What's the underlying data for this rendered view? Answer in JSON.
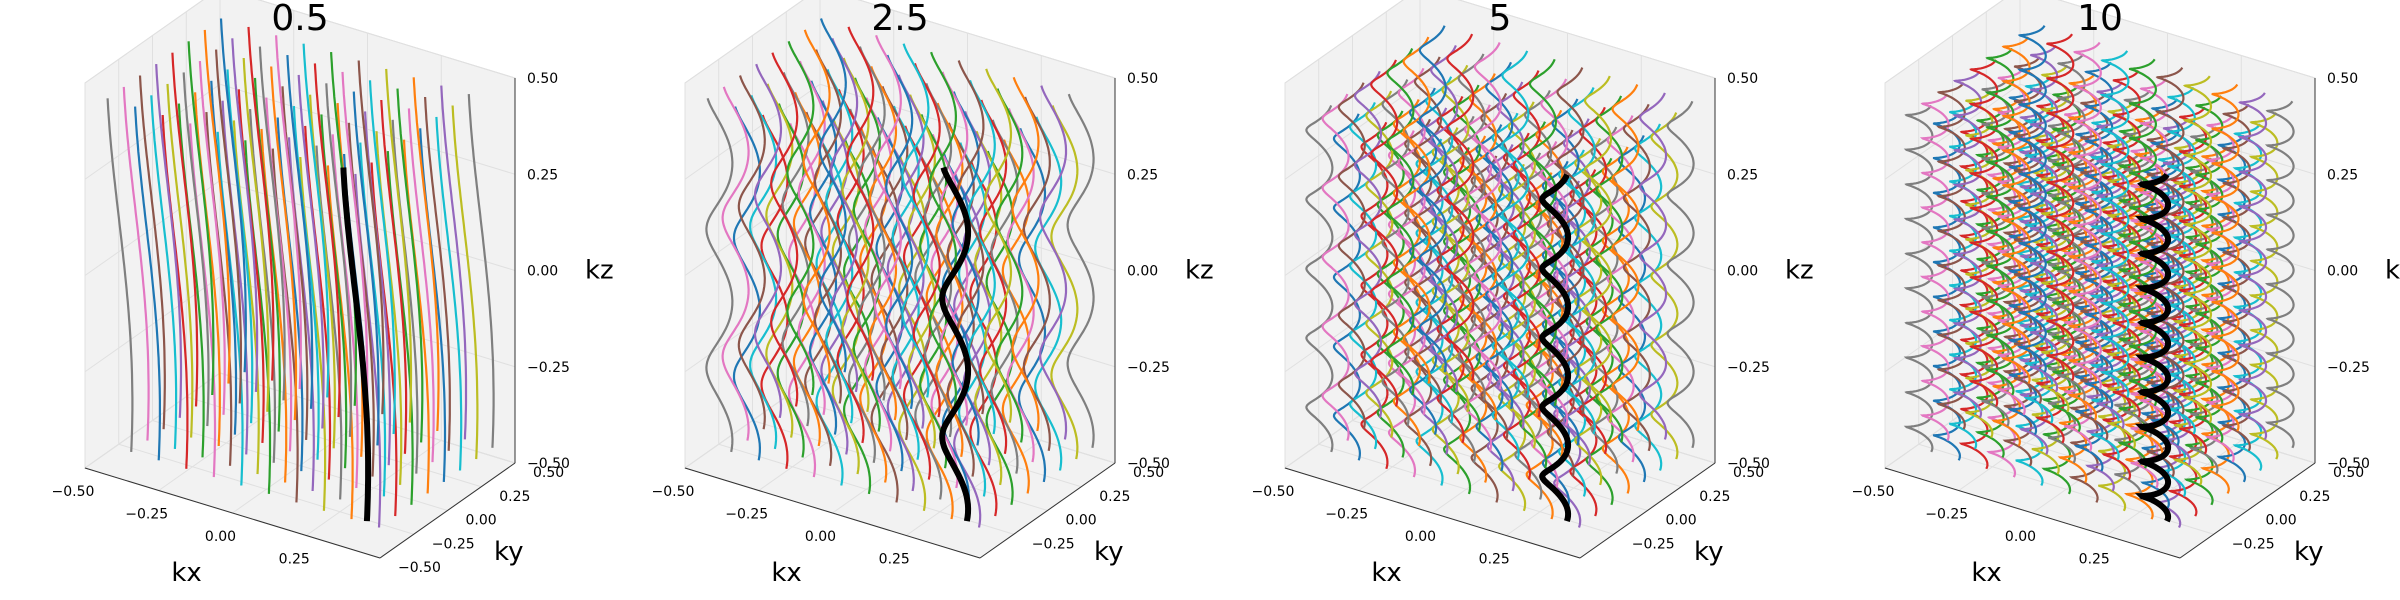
{
  "figure": {
    "panel_count": 4
  },
  "chart_data": [
    {
      "type": "line3d",
      "title": "0.5",
      "turns": 0.5,
      "xlabel": "kx",
      "ylabel": "ky",
      "zlabel": "kz",
      "xlim": [
        -0.5,
        0.5
      ],
      "ylim": [
        -0.5,
        0.5
      ],
      "zlim": [
        -0.5,
        0.5
      ],
      "xticks": [
        "−0.50",
        "−0.25",
        "0.00",
        "0.25"
      ],
      "yticks": [
        "−0.50",
        "−0.25",
        "0.00",
        "0.25",
        "0.50"
      ],
      "zticks": [
        "−0.50",
        "−0.25",
        "0.00",
        "0.25",
        "0.50"
      ],
      "grid": true,
      "helix_amplitude": 0.04,
      "highlight": {
        "x": 0.37,
        "y": -0.4,
        "color": "#000000"
      }
    },
    {
      "type": "line3d",
      "title": "2.5",
      "turns": 2.5,
      "xlabel": "kx",
      "ylabel": "ky",
      "zlabel": "kz",
      "xlim": [
        -0.5,
        0.5
      ],
      "ylim": [
        -0.5,
        0.5
      ],
      "zlim": [
        -0.5,
        0.5
      ],
      "xticks": [
        "−0.50",
        "−0.25",
        "0.00",
        "0.25"
      ],
      "yticks": [
        "−0.25",
        "0.00",
        "0.25",
        "0.50"
      ],
      "zticks": [
        "−0.50",
        "−0.25",
        "0.00",
        "0.25",
        "0.50"
      ],
      "grid": true,
      "helix_amplitude": 0.04,
      "highlight": {
        "x": 0.37,
        "y": -0.4,
        "color": "#000000"
      }
    },
    {
      "type": "line3d",
      "title": "5",
      "turns": 5,
      "xlabel": "kx",
      "ylabel": "ky",
      "zlabel": "kz",
      "xlim": [
        -0.5,
        0.5
      ],
      "ylim": [
        -0.5,
        0.5
      ],
      "zlim": [
        -0.5,
        0.5
      ],
      "xticks": [
        "−0.50",
        "−0.25",
        "0.00",
        "0.25"
      ],
      "yticks": [
        "−0.25",
        "0.00",
        "0.25",
        "0.50"
      ],
      "zticks": [
        "−0.50",
        "−0.25",
        "0.00",
        "0.25",
        "0.50"
      ],
      "grid": true,
      "helix_amplitude": 0.04,
      "highlight": {
        "x": 0.37,
        "y": -0.4,
        "color": "#000000"
      }
    },
    {
      "type": "line3d",
      "title": "10",
      "turns": 10,
      "xlabel": "kx",
      "ylabel": "ky",
      "zlabel": "kz",
      "xlim": [
        -0.5,
        0.5
      ],
      "ylim": [
        -0.5,
        0.5
      ],
      "zlim": [
        -0.5,
        0.5
      ],
      "xticks": [
        "−0.50",
        "−0.25",
        "0.00",
        "0.25"
      ],
      "yticks": [
        "−0.25",
        "0.00",
        "0.25",
        "0.50"
      ],
      "zticks": [
        "−0.50",
        "−0.25",
        "0.00",
        "0.25",
        "0.50"
      ],
      "grid": true,
      "helix_amplitude": 0.04,
      "highlight": {
        "x": 0.37,
        "y": -0.4,
        "color": "#000000"
      }
    }
  ],
  "palette": [
    "#1f77b4",
    "#ff7f0e",
    "#2ca02c",
    "#d62728",
    "#9467bd",
    "#8c564b",
    "#e377c2",
    "#7f7f7f",
    "#bcbd22",
    "#17becf"
  ]
}
